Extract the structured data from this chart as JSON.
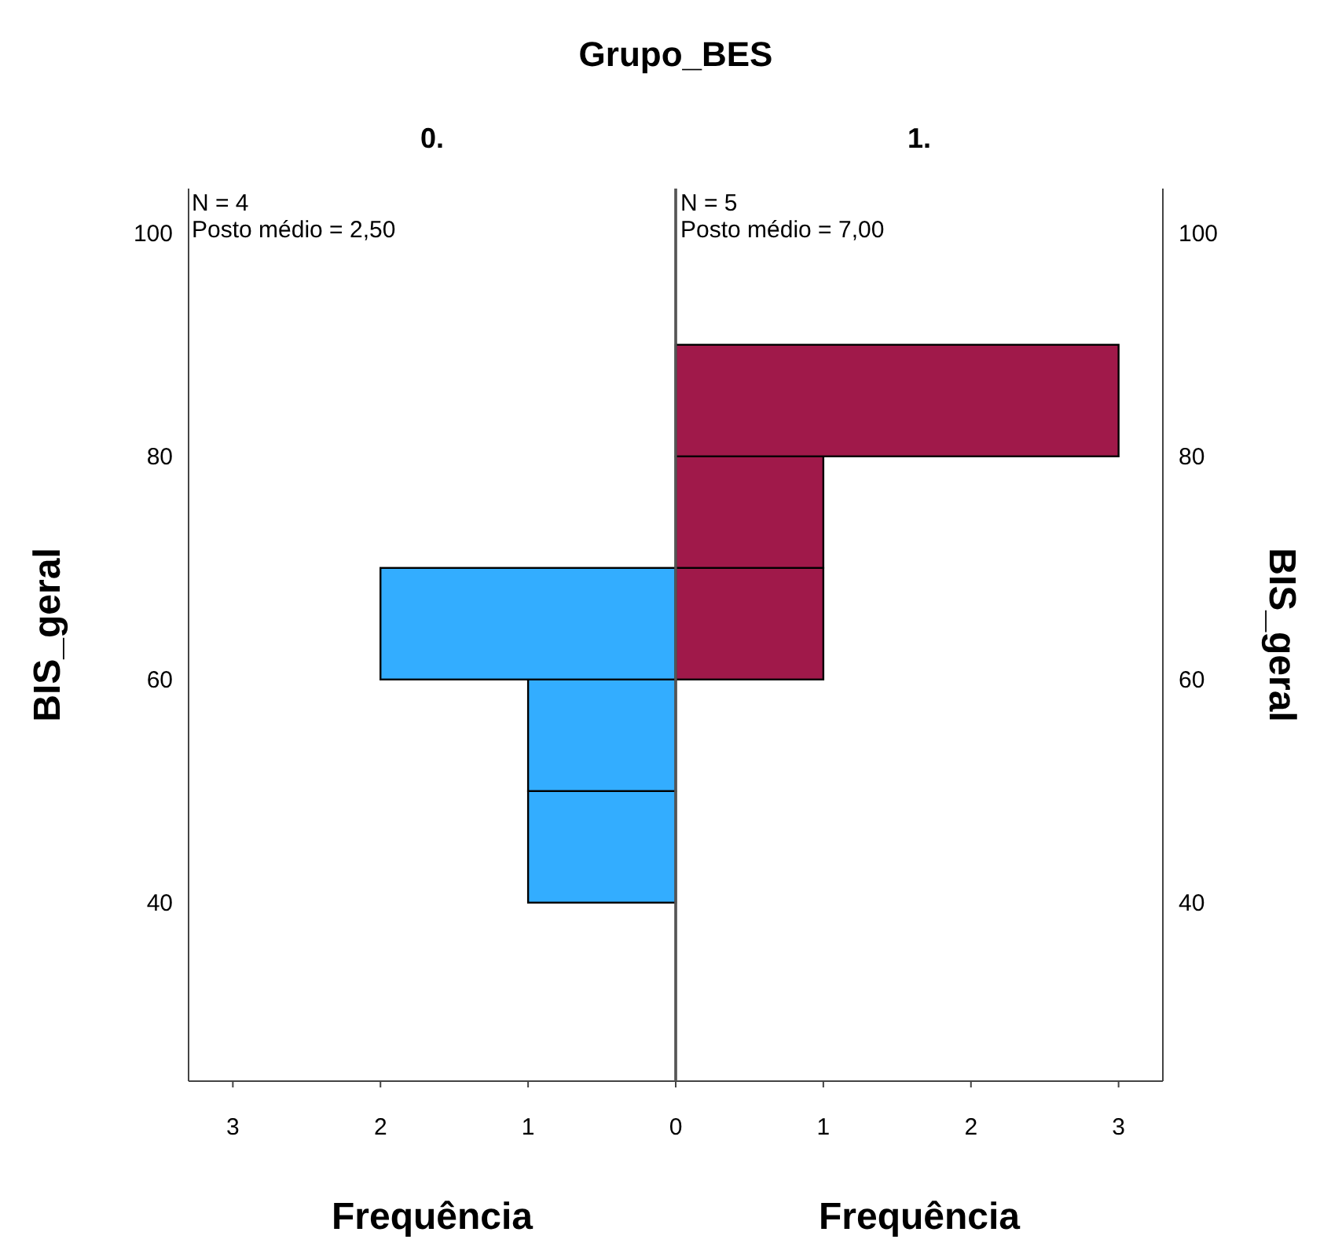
{
  "chart_data": [
    {
      "type": "histogram",
      "orientation": "horizontal",
      "title": "Grupo_BES",
      "subtitle": "0.",
      "xlabel": "Frequência",
      "ylabel": "BIS_geral",
      "annotations": [
        "N = 4",
        "Posto médio = 2,50"
      ],
      "bins": [
        40,
        50,
        60,
        70
      ],
      "values": [
        1,
        1,
        2
      ],
      "color": "#33adff",
      "xlim": [
        3.3,
        0
      ],
      "xticks": [
        3,
        2,
        1
      ],
      "ylim": [
        24,
        104
      ],
      "yticks": [
        40,
        60,
        80,
        100
      ]
    },
    {
      "type": "histogram",
      "orientation": "horizontal",
      "subtitle": "1.",
      "xlabel": "Frequência",
      "ylabel": "BIS_geral",
      "annotations": [
        "N = 5",
        "Posto médio = 7,00"
      ],
      "bins": [
        60,
        70,
        80,
        90
      ],
      "values": [
        1,
        1,
        3
      ],
      "color": "#a0194a",
      "xlim": [
        0,
        3.3
      ],
      "xticks": [
        0,
        1,
        2,
        3
      ],
      "ylim": [
        24,
        104
      ],
      "yticks": [
        40,
        60,
        80,
        100
      ]
    }
  ]
}
